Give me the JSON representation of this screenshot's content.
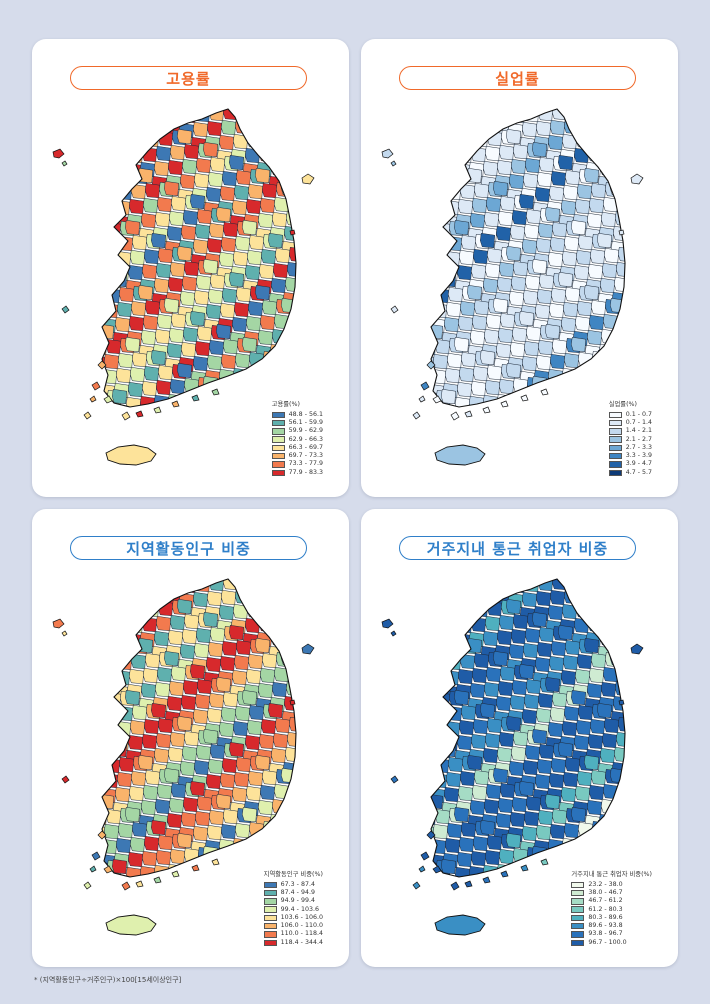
{
  "panels": [
    {
      "title": "고용률",
      "accent": "#f0692a",
      "legend_title": "고용률(%)",
      "classes": [
        {
          "range": "48.8 - 56.1",
          "color": "#3d78b4"
        },
        {
          "range": "56.1 - 59.9",
          "color": "#5fb0ae"
        },
        {
          "range": "59.9 - 62.9",
          "color": "#a4d6a4"
        },
        {
          "range": "62.9 - 66.3",
          "color": "#dff0ae"
        },
        {
          "range": "66.3 - 69.7",
          "color": "#fde39a"
        },
        {
          "range": "69.7 - 73.3",
          "color": "#f9b36b"
        },
        {
          "range": "73.3 - 77.9",
          "color": "#f27a4e"
        },
        {
          "range": "77.9 - 83.3",
          "color": "#d7292c"
        }
      ]
    },
    {
      "title": "실업률",
      "accent": "#f0692a",
      "legend_title": "실업률(%)",
      "classes": [
        {
          "range": "0.1 - 0.7",
          "color": "#f7fbff"
        },
        {
          "range": "0.7 - 1.4",
          "color": "#dde9f6"
        },
        {
          "range": "1.4 - 2.1",
          "color": "#c3d9ee"
        },
        {
          "range": "2.1 - 2.7",
          "color": "#9bc4e2"
        },
        {
          "range": "2.7 - 3.3",
          "color": "#6ca7d4"
        },
        {
          "range": "3.3 - 3.9",
          "color": "#3f85c2"
        },
        {
          "range": "3.9 - 4.7",
          "color": "#2162a8"
        },
        {
          "range": "4.7 - 5.7",
          "color": "#0d3a76"
        }
      ]
    },
    {
      "title": "지역활동인구 비중",
      "accent": "#2f7fc9",
      "legend_title": "지역활동인구 비중(%)",
      "classes": [
        {
          "range": "67.3 - 87.4",
          "color": "#3d78b4"
        },
        {
          "range": "87.4 - 94.9",
          "color": "#5fb0ae"
        },
        {
          "range": "94.9 - 99.4",
          "color": "#a4d6a4"
        },
        {
          "range": "99.4 - 103.6",
          "color": "#dff0ae"
        },
        {
          "range": "103.6 - 106.0",
          "color": "#fde39a"
        },
        {
          "range": "106.0 - 110.0",
          "color": "#f9b36b"
        },
        {
          "range": "110.0 - 118.4",
          "color": "#f27a4e"
        },
        {
          "range": "118.4 - 344.4",
          "color": "#d7292c"
        }
      ]
    },
    {
      "title": "거주지내 통근 취업자 비중",
      "accent": "#2f7fc9",
      "legend_title": "거주지내 통근 취업자 비중(%)",
      "classes": [
        {
          "range": "23.2 - 38.0",
          "color": "#f1f9ec"
        },
        {
          "range": "38.0 - 46.7",
          "color": "#cfebd2"
        },
        {
          "range": "46.7 - 61.2",
          "color": "#a5dcc5"
        },
        {
          "range": "61.2 - 80.3",
          "color": "#79c9c0"
        },
        {
          "range": "80.3 - 89.6",
          "color": "#4fb0bf"
        },
        {
          "range": "89.6 - 93.8",
          "color": "#3a8fc4"
        },
        {
          "range": "93.8 - 96.7",
          "color": "#2a72bb"
        },
        {
          "range": "96.7 - 100.0",
          "color": "#1f5ca7"
        }
      ]
    }
  ],
  "footnote": "* (지역활동인구÷거주인구)×100[15세이상인구]"
}
